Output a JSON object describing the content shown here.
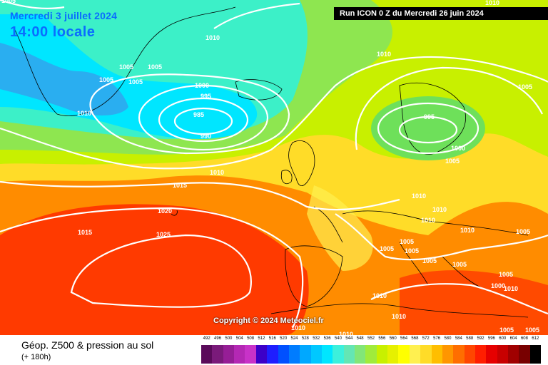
{
  "header": {
    "valid_date": "Mercredi 3 juillet 2024",
    "valid_time": "14:00 locale",
    "run_label": "Run ICON 0 Z du Mercredi 26 juin 2024"
  },
  "copyright": "Copyright © 2024 Meteociel.fr",
  "footer": {
    "title": "Géop. Z500 & pression au sol",
    "subtitle": "(+ 180h)"
  },
  "legend": {
    "values": [
      "492",
      "496",
      "500",
      "504",
      "508",
      "512",
      "516",
      "520",
      "524",
      "528",
      "532",
      "536",
      "540",
      "544",
      "548",
      "552",
      "556",
      "560",
      "564",
      "568",
      "572",
      "576",
      "580",
      "584",
      "588",
      "592",
      "596",
      "600",
      "604",
      "608",
      "612"
    ],
    "colors": [
      "#5a0a5a",
      "#7a1a7a",
      "#961e96",
      "#b428b4",
      "#c832c8",
      "#3c00c8",
      "#1e1eff",
      "#0050ff",
      "#007cff",
      "#00a8ff",
      "#00c8ff",
      "#00e6ff",
      "#3cf0dc",
      "#64e6b4",
      "#82e678",
      "#a0eb3c",
      "#c8f000",
      "#e6f000",
      "#ffff00",
      "#fff050",
      "#ffdc28",
      "#ffbe00",
      "#ff9600",
      "#ff6e00",
      "#ff4600",
      "#ff1e00",
      "#e60000",
      "#c80000",
      "#a00000",
      "#780000",
      "#000000"
    ]
  },
  "isobars": {
    "low_west": [
      "1005",
      "1005",
      "1005",
      "1010",
      "1010",
      "1000",
      "995",
      "985",
      "990"
    ],
    "low_north": [
      "995",
      "1000",
      "1005",
      "1010"
    ],
    "high": [
      "1025",
      "1020",
      "1015",
      "1015",
      "1010"
    ],
    "europe": [
      "1010",
      "1010",
      "1010",
      "1010",
      "1005",
      "1005",
      "1005",
      "1005",
      "1005",
      "1005",
      "1010",
      "1010",
      "1005",
      "1000",
      "1010",
      "1010",
      "1005",
      "1010"
    ],
    "top": [
      "1010",
      "1005",
      "1005",
      "1010"
    ]
  }
}
